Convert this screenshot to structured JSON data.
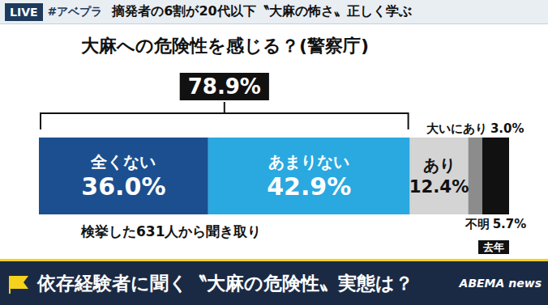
{
  "screen": {
    "live": "LIVE",
    "hashtag": "#アベプラ",
    "headline": "摘発者の6割が20代以下〝大麻の怖さ〟正しく学ぶ",
    "caption": "依存経験者に聞く〝大麻の危険性〟実態は？",
    "logo": "ABEMA news"
  },
  "chart_data": {
    "type": "bar",
    "orientation": "horizontal",
    "stacked": true,
    "title": "大麻への危険性を感じる？(警察庁)",
    "categories": [
      null
    ],
    "series": [
      {
        "name": "全くない",
        "color": "#1c4f8f",
        "values": [
          36.0
        ],
        "value_labels": [
          "36.0%"
        ]
      },
      {
        "name": "あまりない",
        "color": "#2aa8e0",
        "values": [
          42.9
        ],
        "value_labels": [
          "42.9%"
        ]
      },
      {
        "name": "あり",
        "color": "#d4d4d4",
        "values": [
          12.4
        ],
        "value_labels": [
          "12.4%"
        ]
      },
      {
        "name": "大いにあり",
        "color": "#8c8c8c",
        "values": [
          3.0
        ],
        "value_labels": [
          "3.0%"
        ]
      },
      {
        "name": "不明",
        "color": "#111111",
        "values": [
          5.7
        ],
        "value_labels": [
          "5.7%"
        ]
      }
    ],
    "xlim": [
      0,
      100
    ],
    "tick_labels": false,
    "grid": false,
    "data_labels": true,
    "annotations": {
      "bracket": {
        "label": "78.9%",
        "value": 78.9
      },
      "note": "検挙した631人から聞き取り",
      "period": "去年"
    }
  }
}
